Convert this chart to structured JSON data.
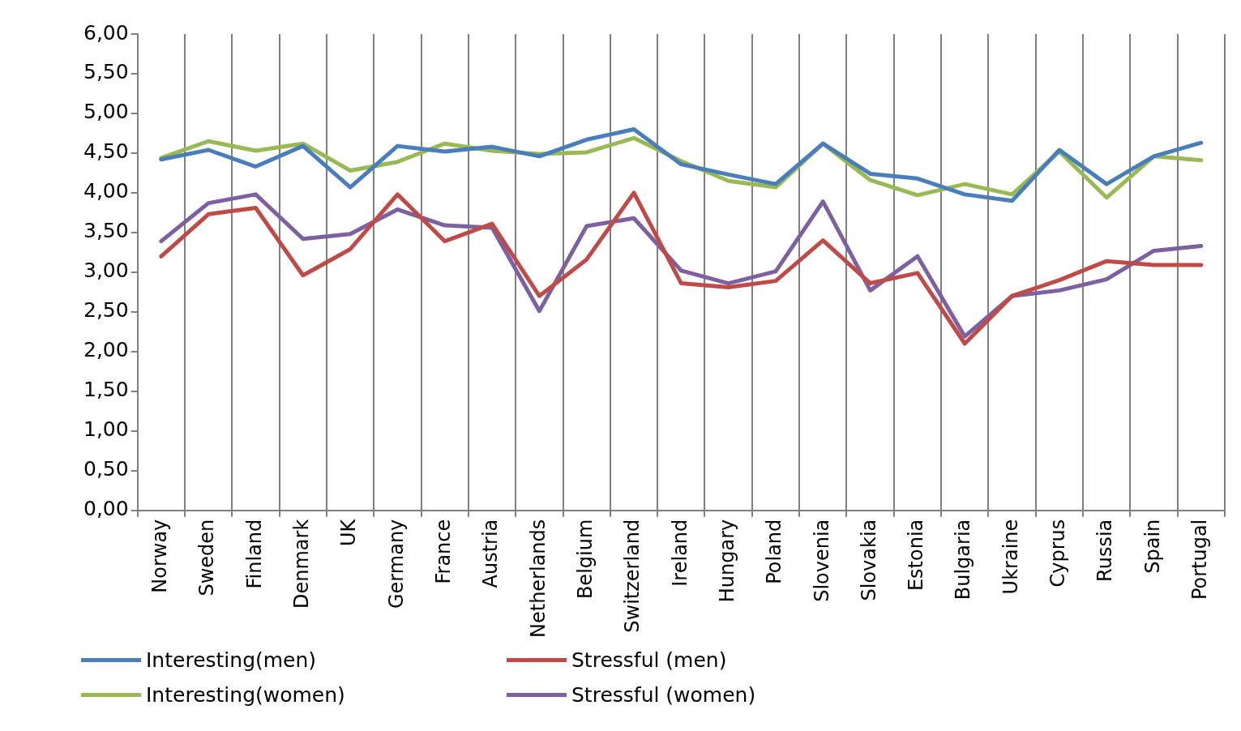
{
  "chart_data": {
    "type": "line",
    "categories": [
      "Norway",
      "Sweden",
      "Finland",
      "Denmark",
      "UK",
      "Germany",
      "France",
      "Austria",
      "Netherlands",
      "Belgium",
      "Switzerland",
      "Ireland",
      "Hungary",
      "Poland",
      "Slovenia",
      "Slovakia",
      "Estonia",
      "Bulgaria",
      "Ukraine",
      "Cyprus",
      "Russia",
      "Spain",
      "Portugal"
    ],
    "ylim": [
      0,
      6
    ],
    "yticks": [
      {
        "value": 0,
        "label": "0,00"
      },
      {
        "value": 0.5,
        "label": "0,50"
      },
      {
        "value": 1,
        "label": "1,00"
      },
      {
        "value": 1.5,
        "label": "1,50"
      },
      {
        "value": 2,
        "label": "2,00"
      },
      {
        "value": 2.5,
        "label": "2,50"
      },
      {
        "value": 3,
        "label": "3,00"
      },
      {
        "value": 3.5,
        "label": "3,50"
      },
      {
        "value": 4,
        "label": "4,00"
      },
      {
        "value": 4.5,
        "label": "4,50"
      },
      {
        "value": 5,
        "label": "5,00"
      },
      {
        "value": 5.5,
        "label": "5,50"
      },
      {
        "value": 6,
        "label": "6,00"
      }
    ],
    "grid": "x",
    "legend": "bottom",
    "marker": "none",
    "line_style": "solid",
    "series": [
      {
        "name": "Interesting(men)",
        "color": "#4a7ebb",
        "values": [
          4.42,
          4.54,
          4.33,
          4.59,
          4.07,
          4.59,
          4.52,
          4.58,
          4.46,
          4.67,
          4.8,
          4.36,
          4.23,
          4.11,
          4.62,
          4.24,
          4.18,
          3.98,
          3.9,
          4.54,
          4.11,
          4.46,
          4.63
        ]
      },
      {
        "name": "Stressful (men)",
        "color": "#be4b48",
        "values": [
          3.2,
          3.73,
          3.81,
          2.96,
          3.29,
          3.98,
          3.39,
          3.61,
          2.7,
          3.16,
          4.0,
          2.86,
          2.81,
          2.89,
          3.4,
          2.86,
          2.99,
          2.1,
          2.7,
          2.9,
          3.14,
          3.09,
          3.09
        ]
      },
      {
        "name": "Interesting(women)",
        "color": "#98b954",
        "values": [
          4.44,
          4.65,
          4.53,
          4.62,
          4.28,
          4.39,
          4.62,
          4.53,
          4.49,
          4.51,
          4.69,
          4.4,
          4.15,
          4.07,
          4.62,
          4.16,
          3.97,
          4.11,
          3.98,
          4.52,
          3.94,
          4.46,
          4.41
        ]
      },
      {
        "name": "Stressful (women)",
        "color": "#7d60a0",
        "values": [
          3.39,
          3.87,
          3.98,
          3.42,
          3.48,
          3.79,
          3.59,
          3.56,
          2.51,
          3.58,
          3.68,
          3.02,
          2.86,
          3.01,
          3.89,
          2.77,
          3.2,
          2.19,
          2.7,
          2.77,
          2.91,
          3.27,
          3.33
        ]
      }
    ]
  }
}
